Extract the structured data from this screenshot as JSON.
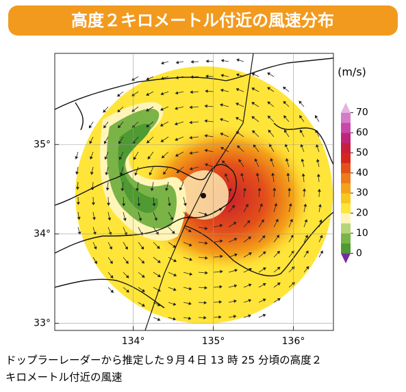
{
  "title": "高度２キロメートル付近の風速分布",
  "map": {
    "xlim": [
      133.02,
      136.5
    ],
    "ylim": [
      32.92,
      36.02
    ],
    "xticks": [
      {
        "value": 134,
        "label": "134°"
      },
      {
        "value": 135,
        "label": "135°"
      },
      {
        "value": 136,
        "label": "136°"
      }
    ],
    "yticks": [
      {
        "value": 33,
        "label": "33°"
      },
      {
        "value": 34,
        "label": "34°"
      },
      {
        "value": 35,
        "label": "35°"
      }
    ],
    "grid": true
  },
  "colorbar": {
    "label": "(m/s)",
    "lim": [
      -5,
      75
    ],
    "ticks": [
      0,
      10,
      20,
      30,
      40,
      50,
      60,
      70
    ],
    "colors": [
      "#7a2aa0",
      "#4f9a32",
      "#7ab446",
      "#b7d47a",
      "#fff5b8",
      "#ffe53a",
      "#f5c81c",
      "#f4a21a",
      "#ee7a1a",
      "#e4501a",
      "#d7261e",
      "#c81e3c",
      "#c0247a",
      "#c848a8",
      "#d47cc8",
      "#e4b4e0"
    ]
  },
  "caption": [
    "ドップラーレーダーから推定した９月４日 13 時 25 分頃の高度２",
    "キロメートル付近の風速"
  ]
}
